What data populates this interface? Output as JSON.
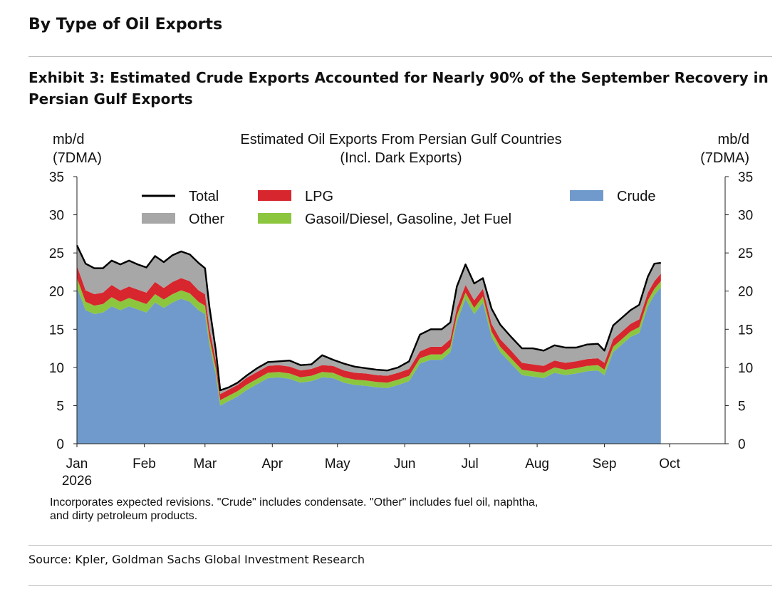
{
  "section_title": "By Type of Oil Exports",
  "exhibit_title": "Exhibit 3: Estimated Crude Exports Accounted for Nearly 90% of the September Recovery in Persian Gulf Exports",
  "source": "Source: Kpler, Goldman Sachs Global Investment Research",
  "footnote_line1": "Incorporates expected revisions. \"Crude\" includes condensate. \"Other\" includes fuel oil, naphtha,",
  "footnote_line2": "and dirty petroleum products.",
  "chart_data": {
    "type": "area",
    "title_line1": "Estimated Oil Exports From Persian Gulf Countries",
    "title_line2": "(Incl. Dark Exports)",
    "y_left_label": [
      "mb/d",
      "(7DMA)"
    ],
    "y_right_label": [
      "mb/d",
      "(7DMA)"
    ],
    "ylim": [
      0,
      35
    ],
    "yticks": [
      0,
      5,
      10,
      15,
      20,
      25,
      30,
      35
    ],
    "x_start": "2026-01-01",
    "x_end": "2026-10-01",
    "x_tick_labels": [
      "Jan",
      "Feb",
      "Mar",
      "Apr",
      "May",
      "Jun",
      "Jul",
      "Aug",
      "Sep",
      "Oct"
    ],
    "x_year_label": "2026",
    "legend_placement": "top",
    "colors": {
      "crude": "#6f9acb",
      "gasoil": "#8cc63f",
      "lpg": "#d7262e",
      "other": "#a7a7a7",
      "total": "#000000"
    },
    "legend": [
      {
        "key": "total",
        "label": "Total"
      },
      {
        "key": "lpg",
        "label": "LPG"
      },
      {
        "key": "crude",
        "label": "Crude"
      },
      {
        "key": "other",
        "label": "Other"
      },
      {
        "key": "gasoil",
        "label": "Gasoil/Diesel, Gasoline, Jet Fuel"
      }
    ],
    "x": [
      "2026-01-01",
      "2026-01-05",
      "2026-01-09",
      "2026-01-13",
      "2026-01-17",
      "2026-01-21",
      "2026-01-25",
      "2026-01-29",
      "2026-02-02",
      "2026-02-06",
      "2026-02-10",
      "2026-02-14",
      "2026-02-18",
      "2026-02-22",
      "2026-02-26",
      "2026-03-01",
      "2026-03-03",
      "2026-03-06",
      "2026-03-08",
      "2026-03-12",
      "2026-03-16",
      "2026-03-20",
      "2026-03-25",
      "2026-03-30",
      "2026-04-04",
      "2026-04-09",
      "2026-04-14",
      "2026-04-19",
      "2026-04-24",
      "2026-04-29",
      "2026-05-04",
      "2026-05-09",
      "2026-05-14",
      "2026-05-19",
      "2026-05-24",
      "2026-05-29",
      "2026-06-03",
      "2026-06-08",
      "2026-06-13",
      "2026-06-18",
      "2026-06-22",
      "2026-06-25",
      "2026-06-29",
      "2026-07-03",
      "2026-07-07",
      "2026-07-11",
      "2026-07-15",
      "2026-07-20",
      "2026-07-25",
      "2026-07-30",
      "2026-08-04",
      "2026-08-09",
      "2026-08-14",
      "2026-08-19",
      "2026-08-24",
      "2026-08-29",
      "2026-09-01",
      "2026-09-05",
      "2026-09-09",
      "2026-09-13",
      "2026-09-17",
      "2026-09-21",
      "2026-09-24",
      "2026-09-27"
    ],
    "series": [
      {
        "key": "crude",
        "name": "Crude",
        "values": [
          20.5,
          17.5,
          17.0,
          17.2,
          18.0,
          17.5,
          18.0,
          17.6,
          17.2,
          18.5,
          17.8,
          18.5,
          19.0,
          18.6,
          17.5,
          17.0,
          13.0,
          9.0,
          5.0,
          5.6,
          6.2,
          7.0,
          7.8,
          8.6,
          8.7,
          8.5,
          8.0,
          8.2,
          8.7,
          8.6,
          8.0,
          7.7,
          7.6,
          7.4,
          7.3,
          7.7,
          8.2,
          10.5,
          11.0,
          11.0,
          12.0,
          16.0,
          19.0,
          17.0,
          18.5,
          14.0,
          12.0,
          10.5,
          9.0,
          8.8,
          8.6,
          9.3,
          9.0,
          9.2,
          9.5,
          9.6,
          9.0,
          12.0,
          13.0,
          14.0,
          14.5,
          18.0,
          19.5,
          20.5
        ]
      },
      {
        "key": "gasoil",
        "name": "Gasoil/Diesel, Gasoline, Jet Fuel",
        "values": [
          1.2,
          1.1,
          1.1,
          1.1,
          1.2,
          1.1,
          1.1,
          1.1,
          1.1,
          1.1,
          1.1,
          1.1,
          1.1,
          1.1,
          1.1,
          1.1,
          0.9,
          0.8,
          0.7,
          0.7,
          0.7,
          0.7,
          0.7,
          0.7,
          0.7,
          0.7,
          0.7,
          0.7,
          0.7,
          0.7,
          0.7,
          0.7,
          0.7,
          0.7,
          0.7,
          0.7,
          0.7,
          0.7,
          0.7,
          0.7,
          0.7,
          0.8,
          0.8,
          0.8,
          0.8,
          0.7,
          0.7,
          0.7,
          0.7,
          0.7,
          0.7,
          0.7,
          0.7,
          0.7,
          0.7,
          0.7,
          0.7,
          0.7,
          0.7,
          0.7,
          0.8,
          0.8,
          0.8,
          0.8
        ]
      },
      {
        "key": "lpg",
        "name": "LPG",
        "values": [
          1.6,
          1.5,
          1.5,
          1.5,
          1.6,
          1.5,
          1.5,
          1.5,
          1.5,
          1.6,
          1.5,
          1.6,
          1.6,
          1.6,
          1.5,
          1.5,
          1.3,
          1.0,
          0.8,
          0.8,
          0.8,
          0.9,
          0.9,
          0.9,
          0.9,
          0.9,
          0.9,
          0.9,
          0.9,
          0.9,
          0.9,
          0.9,
          0.9,
          0.9,
          0.9,
          0.9,
          0.9,
          0.9,
          1.0,
          1.0,
          1.0,
          1.0,
          1.0,
          1.0,
          1.0,
          1.0,
          1.0,
          1.0,
          0.9,
          0.9,
          0.9,
          0.9,
          0.9,
          0.9,
          0.9,
          0.9,
          0.9,
          1.0,
          1.0,
          1.0,
          1.0,
          1.0,
          1.0,
          1.0
        ]
      },
      {
        "key": "other",
        "name": "Other",
        "values": [
          2.7,
          3.5,
          3.4,
          3.2,
          3.2,
          3.4,
          3.4,
          3.3,
          3.3,
          3.4,
          3.4,
          3.5,
          3.5,
          3.5,
          3.6,
          3.4,
          2.8,
          1.4,
          0.5,
          0.3,
          0.3,
          0.3,
          0.5,
          0.5,
          0.5,
          0.8,
          0.7,
          0.6,
          1.3,
          0.8,
          0.9,
          0.8,
          0.7,
          0.7,
          0.7,
          0.7,
          1.0,
          2.2,
          2.3,
          2.3,
          2.2,
          2.8,
          2.7,
          2.2,
          1.4,
          2.0,
          1.9,
          1.8,
          1.9,
          2.1,
          2.0,
          2.0,
          2.0,
          1.8,
          1.9,
          1.9,
          1.6,
          1.8,
          1.8,
          1.8,
          1.9,
          2.1,
          2.3,
          1.4
        ]
      },
      {
        "key": "total",
        "name": "Total",
        "values": [
          26.0,
          23.6,
          23.0,
          23.0,
          24.0,
          23.5,
          24.0,
          23.5,
          23.1,
          24.6,
          23.8,
          24.7,
          25.2,
          24.8,
          23.7,
          23.0,
          18.0,
          12.2,
          7.0,
          7.4,
          8.0,
          8.9,
          9.9,
          10.7,
          10.8,
          10.9,
          10.3,
          10.4,
          11.6,
          11.0,
          10.5,
          10.1,
          9.9,
          9.7,
          9.6,
          10.0,
          10.8,
          14.3,
          15.0,
          15.0,
          15.9,
          20.6,
          23.5,
          21.0,
          21.7,
          17.7,
          15.6,
          14.0,
          12.5,
          12.5,
          12.2,
          12.9,
          12.6,
          12.6,
          13.0,
          13.1,
          12.2,
          15.5,
          16.5,
          17.5,
          18.2,
          21.9,
          23.6,
          23.7
        ]
      }
    ]
  }
}
